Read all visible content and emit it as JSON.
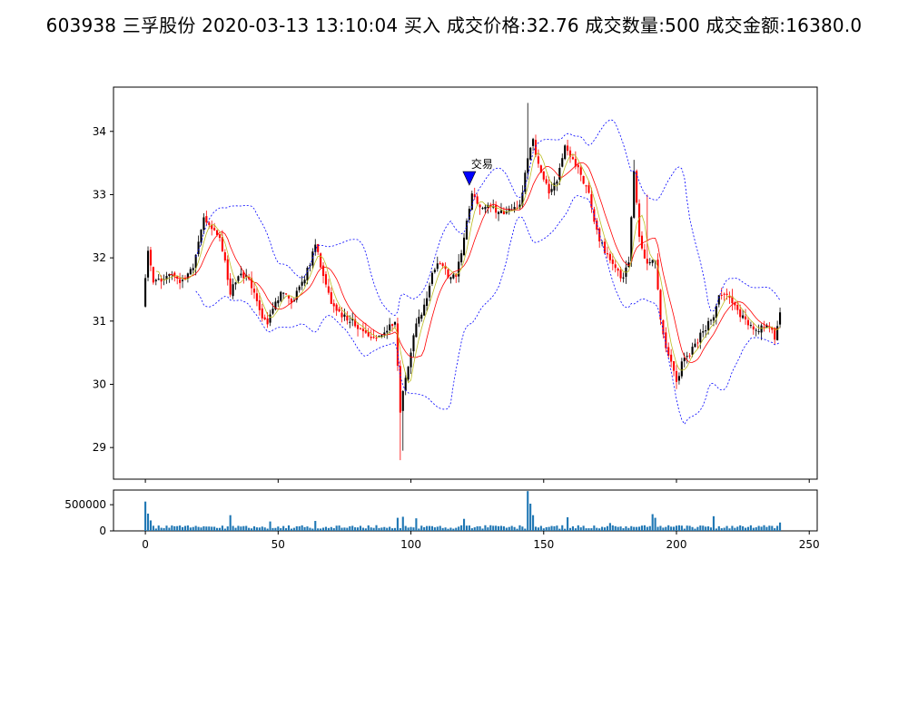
{
  "title": "603938 三孚股份 2020-03-13 13:10:04 买入 成交价格:32.76 成交数量:500 成交金额:16380.0",
  "chart_data": [
    {
      "type": "candlestick",
      "xlim": [
        -12,
        253
      ],
      "ylim": [
        28.5,
        34.7
      ],
      "y_ticks": [
        "29",
        "30",
        "31",
        "32",
        "33",
        "34"
      ],
      "x_ticks": [
        0,
        50,
        100,
        150,
        200,
        250
      ],
      "series_note": "",
      "annotation": {
        "text": "交易",
        "x": 122,
        "y": 33.25,
        "marker": "down-triangle",
        "marker_color": "#0000ff"
      },
      "colors": {
        "up": "#000000",
        "down": "#ff0000",
        "ma_short": "#bcbd22",
        "ma_long": "#ff0000",
        "band": "#0000ff"
      },
      "anchors": [
        [
          0,
          31.7
        ],
        [
          1,
          32.15
        ],
        [
          3,
          31.65
        ],
        [
          6,
          31.65
        ],
        [
          9,
          31.75
        ],
        [
          12,
          31.65
        ],
        [
          15,
          31.65
        ],
        [
          18,
          31.85
        ],
        [
          22,
          32.65
        ],
        [
          25,
          32.45
        ],
        [
          28,
          32.35
        ],
        [
          30,
          31.95
        ],
        [
          32,
          31.45
        ],
        [
          35,
          31.75
        ],
        [
          38,
          31.7
        ],
        [
          41,
          31.5
        ],
        [
          44,
          31.0
        ],
        [
          46,
          30.95
        ],
        [
          48,
          31.2
        ],
        [
          51,
          31.45
        ],
        [
          55,
          31.3
        ],
        [
          58,
          31.5
        ],
        [
          62,
          31.9
        ],
        [
          64,
          32.25
        ],
        [
          67,
          31.7
        ],
        [
          70,
          31.3
        ],
        [
          74,
          31.1
        ],
        [
          78,
          31.0
        ],
        [
          82,
          30.85
        ],
        [
          86,
          30.75
        ],
        [
          90,
          30.85
        ],
        [
          94,
          30.95
        ],
        [
          96,
          29.6
        ],
        [
          98,
          30.1
        ],
        [
          100,
          30.55
        ],
        [
          102,
          31.0
        ],
        [
          104,
          31.1
        ],
        [
          106,
          31.4
        ],
        [
          108,
          31.75
        ],
        [
          111,
          31.95
        ],
        [
          114,
          31.7
        ],
        [
          117,
          31.7
        ],
        [
          119,
          32.1
        ],
        [
          121,
          32.55
        ],
        [
          123,
          33.0
        ],
        [
          126,
          32.8
        ],
        [
          130,
          32.8
        ],
        [
          134,
          32.7
        ],
        [
          138,
          32.8
        ],
        [
          141,
          32.8
        ],
        [
          144,
          33.6
        ],
        [
          146,
          33.85
        ],
        [
          149,
          33.3
        ],
        [
          152,
          33.05
        ],
        [
          155,
          33.2
        ],
        [
          158,
          33.75
        ],
        [
          161,
          33.55
        ],
        [
          164,
          33.3
        ],
        [
          167,
          33.0
        ],
        [
          170,
          32.4
        ],
        [
          173,
          32.1
        ],
        [
          176,
          31.95
        ],
        [
          179,
          31.65
        ],
        [
          182,
          31.9
        ],
        [
          184,
          33.4
        ],
        [
          186,
          32.3
        ],
        [
          188,
          32.0
        ],
        [
          190,
          31.9
        ],
        [
          192,
          31.95
        ],
        [
          194,
          31.0
        ],
        [
          196,
          30.55
        ],
        [
          198,
          30.35
        ],
        [
          200,
          30.0
        ],
        [
          202,
          30.35
        ],
        [
          205,
          30.5
        ],
        [
          208,
          30.7
        ],
        [
          211,
          30.9
        ],
        [
          214,
          31.1
        ],
        [
          216,
          31.45
        ],
        [
          219,
          31.4
        ],
        [
          222,
          31.2
        ],
        [
          225,
          31.05
        ],
        [
          228,
          30.9
        ],
        [
          231,
          30.85
        ],
        [
          234,
          30.95
        ],
        [
          237,
          30.75
        ],
        [
          239,
          31.15
        ]
      ]
    },
    {
      "type": "bar",
      "title": "",
      "xlim": [
        -12,
        253
      ],
      "ylim": [
        0,
        780000
      ],
      "y_ticks": [
        "0",
        "500000"
      ],
      "x_ticks": [
        "0",
        "50",
        "100",
        "150",
        "200",
        "250"
      ],
      "color": "#1f77b4",
      "volume_spikes": [
        [
          0,
          560000
        ],
        [
          1,
          330000
        ],
        [
          2,
          200000
        ],
        [
          32,
          300000
        ],
        [
          47,
          180000
        ],
        [
          64,
          190000
        ],
        [
          95,
          250000
        ],
        [
          97,
          270000
        ],
        [
          102,
          240000
        ],
        [
          120,
          230000
        ],
        [
          144,
          760000
        ],
        [
          145,
          520000
        ],
        [
          146,
          300000
        ],
        [
          159,
          260000
        ],
        [
          175,
          150000
        ],
        [
          191,
          320000
        ],
        [
          192,
          250000
        ],
        [
          214,
          280000
        ],
        [
          239,
          160000
        ]
      ]
    }
  ]
}
